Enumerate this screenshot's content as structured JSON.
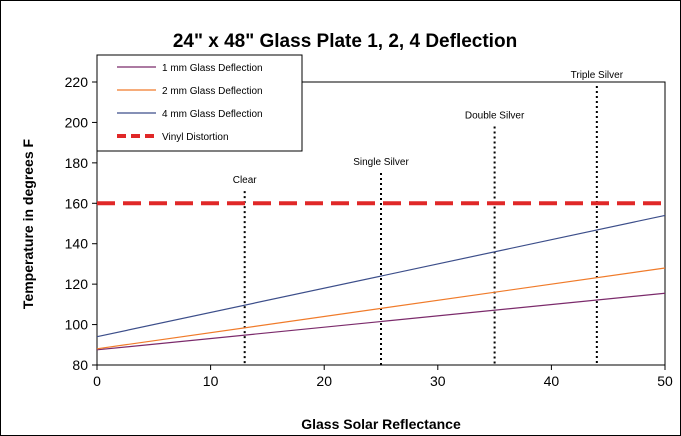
{
  "chart_data": {
    "type": "line",
    "title": "24\" x 48\" Glass Plate 1, 2, 4 Deflection",
    "xlabel": "Glass Solar Reflectance",
    "ylabel": "Temperature in degrees F",
    "xlim": [
      0,
      50
    ],
    "ylim": [
      80,
      220
    ],
    "xticks": [
      0,
      10,
      20,
      30,
      40,
      50
    ],
    "yticks": [
      80,
      100,
      120,
      140,
      160,
      180,
      200,
      220
    ],
    "grid": false,
    "legend_position": "top-left",
    "series": [
      {
        "name": "1 mm Glass Deflection",
        "color": "#7b2a6b",
        "style": "solid",
        "x": [
          0,
          50
        ],
        "y": [
          87.5,
          115.5
        ]
      },
      {
        "name": "2 mm Glass Deflection",
        "color": "#f07b2a",
        "style": "solid",
        "x": [
          0,
          50
        ],
        "y": [
          88,
          128
        ]
      },
      {
        "name": "4 mm Glass Deflection",
        "color": "#3c4e8a",
        "style": "solid",
        "x": [
          0,
          50
        ],
        "y": [
          94,
          154
        ]
      },
      {
        "name": "Vinyl Distortion",
        "color": "#e02828",
        "style": "dashed",
        "x": [
          0,
          50
        ],
        "y": [
          160,
          160
        ]
      }
    ],
    "annotations": [
      {
        "label": "Clear",
        "x": 13,
        "y_top": 166,
        "label_y": 170
      },
      {
        "label": "Single Silver",
        "x": 25,
        "y_top": 175,
        "label_y": 179
      },
      {
        "label": "Double Silver",
        "x": 35,
        "y_top": 198,
        "label_y": 202
      },
      {
        "label": "Triple Silver",
        "x": 44,
        "y_top": 218,
        "label_y": 222
      }
    ]
  }
}
